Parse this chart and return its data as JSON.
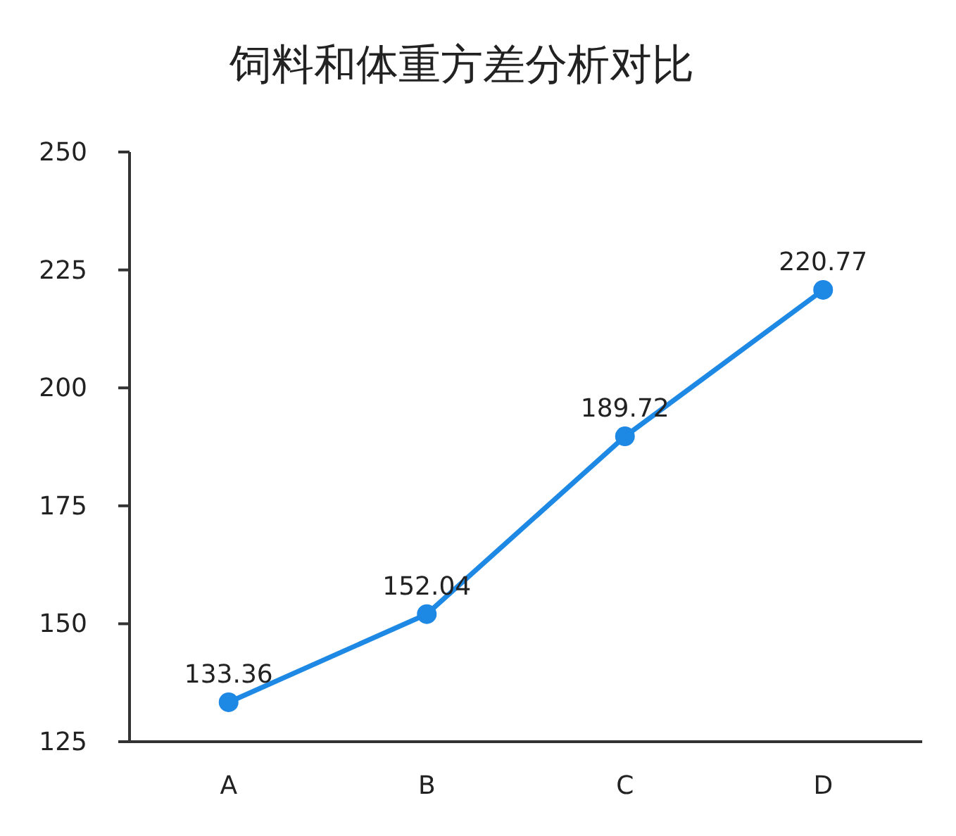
{
  "chart_data": {
    "type": "line",
    "title": "饲料和体重方差分析对比",
    "categories": [
      "A",
      "B",
      "C",
      "D"
    ],
    "series": [
      {
        "color": "#1e88e5",
        "values": [
          133.36,
          152.04,
          189.72,
          220.77
        ]
      }
    ],
    "ylim": [
      125,
      250
    ],
    "yticks": [
      125,
      150,
      175,
      200,
      225,
      250
    ],
    "data_labels": true,
    "marker": "circle",
    "line_style": "solid"
  }
}
